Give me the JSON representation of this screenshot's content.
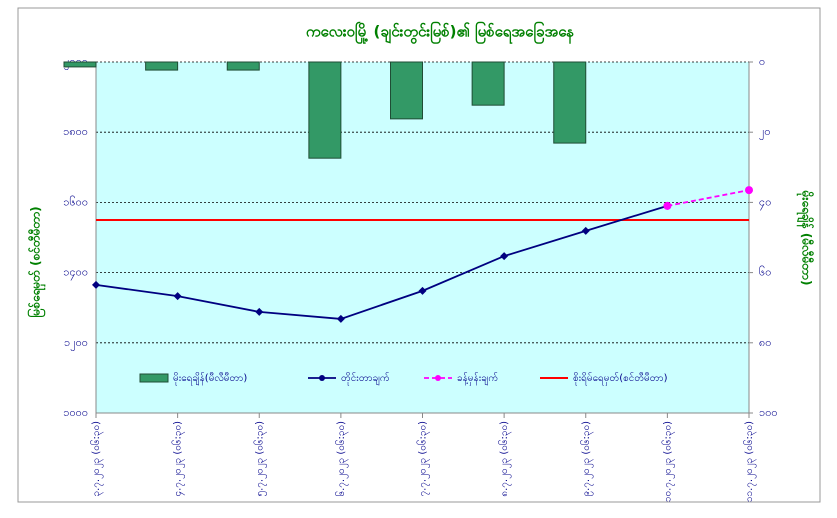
{
  "chart_data": {
    "type": "combo",
    "title": "ကလေးဝမြို့ (ချင်းတွင်းမြစ်)၏ မြစ်ရေအခြေအနေ",
    "y_label": "မြစ်ရေမှတ် (စင်တီမီတာ)",
    "y2_label": "မိုးရေချိန် (မီလီမီတာ)",
    "categories": [
      "၃.၇.၂၀၂၃ (၀၆:၃၀)",
      "၄.၇.၂၀၂၃ (၀၆:၃၀)",
      "၅.၇.၂၀၂၃ (၀၆:၃၀)",
      "၆.၇.၂၀၂၃ (၀၆:၃၀)",
      "၇.၇.၂၀၂၃ (၀၆:၃၀)",
      "၈.၇.၂၀၂၃ (၀၆:၃၀)",
      "၉.၇.၂၀၂၃ (၀၆:၃၀)",
      "၁၀.၇.၂၀၂၃ (၀၆:၃၀)",
      "၁၁.၇.၂၀၂၃ (၀၆:၃၀)"
    ],
    "series": [
      {
        "name": "မိုးရေချိန်(မီလီမီတာ)",
        "type": "bar",
        "axis": "y2",
        "color": "#339966",
        "values": [
          1.4,
          2.3,
          2.3,
          27.4,
          16.2,
          12.3,
          23.1,
          null,
          null
        ]
      },
      {
        "name": "တိုင်းတာချက်",
        "type": "line",
        "color": "#000080",
        "values": [
          1365,
          1333,
          1288,
          1268,
          1348,
          1447,
          1519,
          1590,
          null
        ]
      },
      {
        "name": "ခန့်မှန်းချက်",
        "type": "line",
        "dashed": true,
        "color": "#ff00ff",
        "values": [
          null,
          null,
          null,
          null,
          null,
          null,
          null,
          1590,
          1635
        ]
      }
    ],
    "warning_level": {
      "name": "စိုးရိမ်ရေမှတ်(စင်တီမီတာ)",
      "value": 1550,
      "color": "#ff0000"
    },
    "ylim": [
      1000,
      2000
    ],
    "yticks": [
      {
        "value": 1000,
        "label": "၁၀၀၀"
      },
      {
        "value": 1200,
        "label": "၁၂၀၀"
      },
      {
        "value": 1400,
        "label": "၁၄၀၀"
      },
      {
        "value": 1600,
        "label": "၁၆၀၀"
      },
      {
        "value": 1800,
        "label": "၁၈၀၀"
      },
      {
        "value": 2000,
        "label": "၂၀၀၀"
      }
    ],
    "y2lim": [
      100,
      0
    ],
    "y2ticks": [
      {
        "value": 0,
        "label": "၀"
      },
      {
        "value": 20,
        "label": "၂၀"
      },
      {
        "value": 40,
        "label": "၄၀"
      },
      {
        "value": 60,
        "label": "၆၀"
      },
      {
        "value": 80,
        "label": "၈၀"
      },
      {
        "value": 100,
        "label": "၁၀၀"
      }
    ],
    "grid": true,
    "plot_background": "#ccffff",
    "legend": "bottom"
  }
}
